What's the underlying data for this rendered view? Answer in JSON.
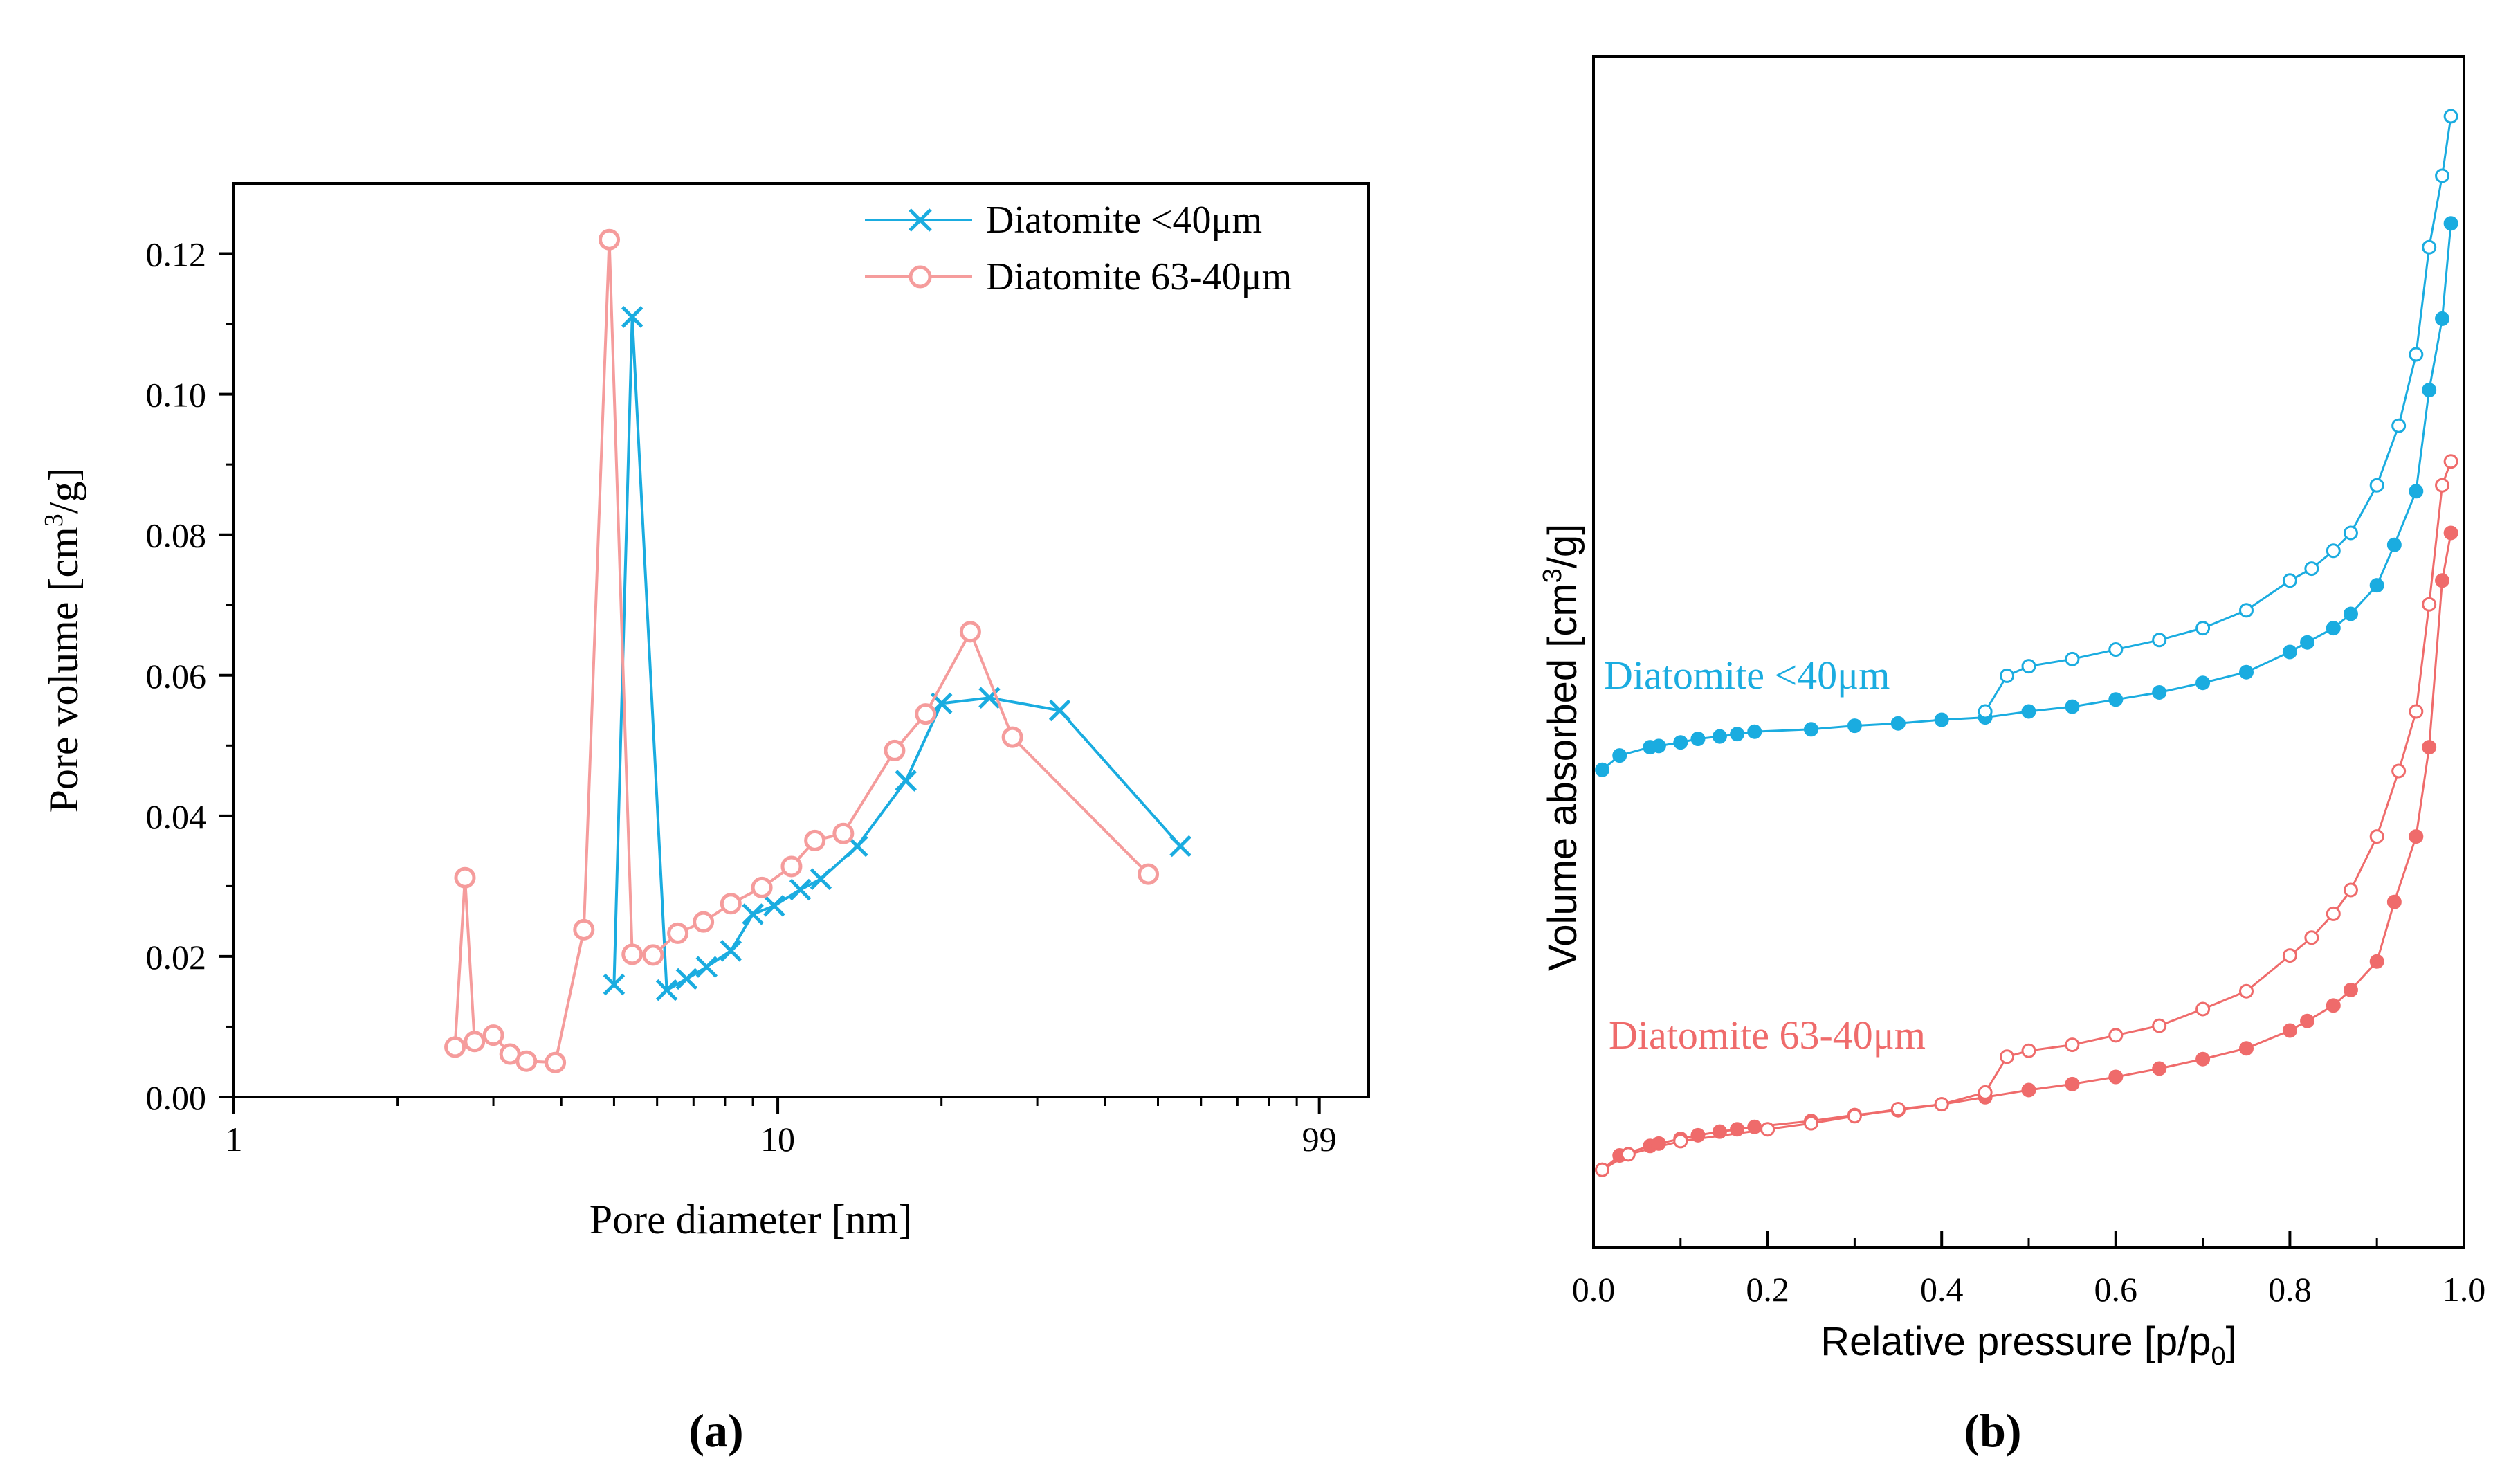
{
  "colors": {
    "blue": "#1aace0",
    "pink": "#f59c9c",
    "red": "#ef6b6b",
    "axis": "#000000"
  },
  "chart_data": [
    {
      "type": "line",
      "panel_label": "(a)",
      "xlabel": "Pore diameter [nm]",
      "ylabel": {
        "pre": "Pore volume [cm",
        "sup": "3",
        "post": "/g]"
      },
      "x_scale": "log",
      "xlim": [
        1,
        122
      ],
      "ylim": [
        0,
        0.13
      ],
      "x_ticks": [
        {
          "value": 1,
          "label": "1"
        },
        {
          "value": 10,
          "label": "10"
        },
        {
          "value": 99,
          "label": "99"
        }
      ],
      "y_ticks": [
        {
          "value": 0.0,
          "label": "0.00"
        },
        {
          "value": 0.02,
          "label": "0.02"
        },
        {
          "value": 0.04,
          "label": "0.04"
        },
        {
          "value": 0.06,
          "label": "0.06"
        },
        {
          "value": 0.08,
          "label": "0.08"
        },
        {
          "value": 0.1,
          "label": "0.10"
        },
        {
          "value": 0.12,
          "label": "0.12"
        }
      ],
      "legend_position": "top-right",
      "series": [
        {
          "name": "Diatomite <40μm",
          "color": "#1aace0",
          "marker": "x",
          "points": [
            [
              5.0,
              0.016
            ],
            [
              5.4,
              0.111
            ],
            [
              6.25,
              0.0152
            ],
            [
              6.8,
              0.0168
            ],
            [
              7.4,
              0.0185
            ],
            [
              8.2,
              0.0208
            ],
            [
              9.0,
              0.026
            ],
            [
              9.85,
              0.0272
            ],
            [
              11.0,
              0.0295
            ],
            [
              12.0,
              0.031
            ],
            [
              14.0,
              0.0357
            ],
            [
              17.2,
              0.045
            ],
            [
              20.0,
              0.056
            ],
            [
              24.5,
              0.0568
            ],
            [
              33.0,
              0.055
            ],
            [
              55.0,
              0.0357
            ]
          ]
        },
        {
          "name": "Diatomite 63-40μm",
          "color": "#f59c9c",
          "marker": "circle",
          "points": [
            [
              2.55,
              0.0071
            ],
            [
              2.66,
              0.0312
            ],
            [
              2.77,
              0.0079
            ],
            [
              3.0,
              0.0088
            ],
            [
              3.22,
              0.0061
            ],
            [
              3.45,
              0.0051
            ],
            [
              3.9,
              0.0049
            ],
            [
              4.4,
              0.0238
            ],
            [
              4.9,
              0.122
            ],
            [
              5.4,
              0.0203
            ],
            [
              5.9,
              0.0202
            ],
            [
              6.55,
              0.0233
            ],
            [
              7.3,
              0.0249
            ],
            [
              8.2,
              0.0275
            ],
            [
              9.35,
              0.0298
            ],
            [
              10.6,
              0.0328
            ],
            [
              11.7,
              0.0365
            ],
            [
              13.2,
              0.0375
            ],
            [
              16.4,
              0.0493
            ],
            [
              18.7,
              0.0545
            ],
            [
              22.6,
              0.0662
            ],
            [
              27.0,
              0.0512
            ],
            [
              48.0,
              0.0317
            ]
          ]
        }
      ]
    },
    {
      "type": "line",
      "panel_label": "(b)",
      "xlabel": {
        "pre": "Relative pressure [p/p",
        "sub": "0",
        "post": "]"
      },
      "ylabel": {
        "pre": "Volume absorbed [cm",
        "sup": "3",
        "post": "/g]"
      },
      "xlim": [
        0,
        1
      ],
      "ylim": [
        0,
        1
      ],
      "y_tick_labels": false,
      "x_ticks": [
        {
          "value": 0.0,
          "label": "0.0"
        },
        {
          "value": 0.2,
          "label": "0.2"
        },
        {
          "value": 0.4,
          "label": "0.4"
        },
        {
          "value": 0.6,
          "label": "0.6"
        },
        {
          "value": 0.8,
          "label": "0.8"
        },
        {
          "value": 1.0,
          "label": "1.0"
        }
      ],
      "annotations": [
        {
          "text": "Diatomite <40μm",
          "color": "#1aace0"
        },
        {
          "text": "Diatomite 63-40μm",
          "color": "#ef6b6b"
        }
      ],
      "series": [
        {
          "name": "Diatomite <40μm",
          "color": "#1aace0",
          "filled": true,
          "points": [
            [
              0.01,
              0.401
            ],
            [
              0.03,
              0.413
            ],
            [
              0.065,
              0.42
            ],
            [
              0.075,
              0.421
            ],
            [
              0.1,
              0.424
            ],
            [
              0.12,
              0.427
            ],
            [
              0.145,
              0.429
            ],
            [
              0.165,
              0.431
            ],
            [
              0.185,
              0.433
            ],
            [
              0.25,
              0.435
            ],
            [
              0.3,
              0.438
            ],
            [
              0.35,
              0.44
            ],
            [
              0.4,
              0.443
            ],
            [
              0.45,
              0.445
            ],
            [
              0.5,
              0.45
            ],
            [
              0.55,
              0.454
            ],
            [
              0.6,
              0.46
            ],
            [
              0.65,
              0.466
            ],
            [
              0.7,
              0.474
            ],
            [
              0.75,
              0.483
            ],
            [
              0.8,
              0.5
            ],
            [
              0.82,
              0.508
            ],
            [
              0.85,
              0.52
            ],
            [
              0.87,
              0.532
            ],
            [
              0.9,
              0.556
            ],
            [
              0.92,
              0.59
            ],
            [
              0.945,
              0.635
            ],
            [
              0.96,
              0.72
            ],
            [
              0.975,
              0.78
            ],
            [
              0.985,
              0.86
            ]
          ]
        },
        {
          "name": "Diatomite <40μm",
          "color": "#1aace0",
          "filled": false,
          "points": [
            [
              0.45,
              0.45
            ],
            [
              0.475,
              0.48
            ],
            [
              0.5,
              0.488
            ],
            [
              0.55,
              0.494
            ],
            [
              0.6,
              0.502
            ],
            [
              0.65,
              0.51
            ],
            [
              0.7,
              0.52
            ],
            [
              0.75,
              0.535
            ],
            [
              0.8,
              0.56
            ],
            [
              0.825,
              0.57
            ],
            [
              0.85,
              0.585
            ],
            [
              0.87,
              0.6
            ],
            [
              0.9,
              0.64
            ],
            [
              0.925,
              0.69
            ],
            [
              0.945,
              0.75
            ],
            [
              0.96,
              0.84
            ],
            [
              0.975,
              0.9
            ],
            [
              0.985,
              0.95
            ]
          ]
        },
        {
          "name": "Diatomite 63-40μm",
          "color": "#ef6b6b",
          "filled": true,
          "points": [
            [
              0.01,
              0.065
            ],
            [
              0.03,
              0.077
            ],
            [
              0.065,
              0.085
            ],
            [
              0.075,
              0.087
            ],
            [
              0.1,
              0.091
            ],
            [
              0.12,
              0.094
            ],
            [
              0.145,
              0.097
            ],
            [
              0.165,
              0.099
            ],
            [
              0.185,
              0.101
            ],
            [
              0.25,
              0.106
            ],
            [
              0.3,
              0.111
            ],
            [
              0.35,
              0.115
            ],
            [
              0.4,
              0.12
            ],
            [
              0.45,
              0.126
            ],
            [
              0.5,
              0.132
            ],
            [
              0.55,
              0.137
            ],
            [
              0.6,
              0.143
            ],
            [
              0.65,
              0.15
            ],
            [
              0.7,
              0.158
            ],
            [
              0.75,
              0.167
            ],
            [
              0.8,
              0.182
            ],
            [
              0.82,
              0.19
            ],
            [
              0.85,
              0.203
            ],
            [
              0.87,
              0.216
            ],
            [
              0.9,
              0.24
            ],
            [
              0.92,
              0.29
            ],
            [
              0.945,
              0.345
            ],
            [
              0.96,
              0.42
            ],
            [
              0.975,
              0.56
            ],
            [
              0.985,
              0.6
            ]
          ]
        },
        {
          "name": "Diatomite 63-40μm",
          "color": "#ef6b6b",
          "filled": false,
          "points": [
            [
              0.01,
              0.065
            ],
            [
              0.04,
              0.078
            ],
            [
              0.1,
              0.089
            ],
            [
              0.2,
              0.099
            ],
            [
              0.25,
              0.104
            ],
            [
              0.3,
              0.11
            ],
            [
              0.35,
              0.116
            ],
            [
              0.4,
              0.12
            ],
            [
              0.45,
              0.13
            ],
            [
              0.475,
              0.16
            ],
            [
              0.5,
              0.165
            ],
            [
              0.55,
              0.17
            ],
            [
              0.6,
              0.178
            ],
            [
              0.65,
              0.186
            ],
            [
              0.7,
              0.2
            ],
            [
              0.75,
              0.215
            ],
            [
              0.8,
              0.245
            ],
            [
              0.825,
              0.26
            ],
            [
              0.85,
              0.28
            ],
            [
              0.87,
              0.3
            ],
            [
              0.9,
              0.345
            ],
            [
              0.925,
              0.4
            ],
            [
              0.945,
              0.45
            ],
            [
              0.96,
              0.54
            ],
            [
              0.975,
              0.64
            ],
            [
              0.985,
              0.66
            ]
          ]
        }
      ]
    }
  ]
}
